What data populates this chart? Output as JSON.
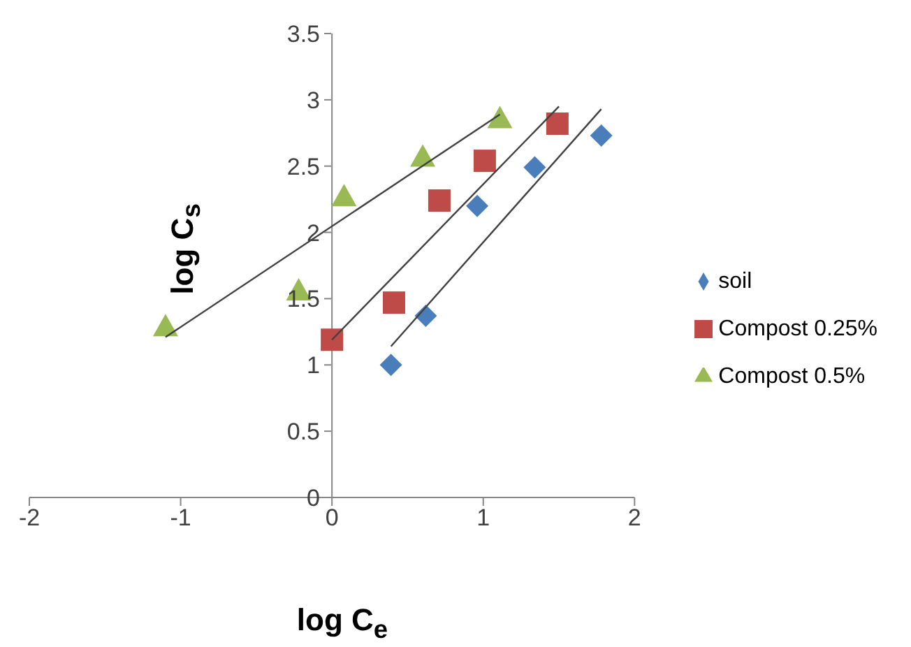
{
  "chart_data": {
    "type": "scatter",
    "xlabel": "log C$_{e}$",
    "ylabel": "log C$_{s}$",
    "xlim": [
      -2,
      2
    ],
    "xticks": [
      -2,
      -1,
      0,
      1,
      2
    ],
    "ylim": [
      0,
      3.5
    ],
    "yticks": [
      0,
      0.5,
      1,
      1.5,
      2,
      2.5,
      3,
      3.5
    ],
    "legend": "right",
    "series": [
      {
        "name": "soil",
        "color": "#4a7ebb",
        "marker": "diamond",
        "x": [
          0.39,
          0.62,
          0.96,
          1.34,
          1.78
        ],
        "values": [
          1.0,
          1.37,
          2.2,
          2.49,
          2.73
        ]
      },
      {
        "name": "Compost 0.25%",
        "color": "#be4b48",
        "marker": "square",
        "x": [
          0,
          0.41,
          0.71,
          1.01,
          1.49
        ],
        "values": [
          1.19,
          1.47,
          2.24,
          2.54,
          2.82
        ]
      },
      {
        "name": "Compost 0.5%",
        "color": "#98b954",
        "marker": "triangle",
        "x": [
          -1.1,
          -0.22,
          0.08,
          0.6,
          1.11
        ],
        "values": [
          1.29,
          1.56,
          2.27,
          2.57,
          2.86
        ]
      },
      {
        "type": "line",
        "color": "#404040",
        "marker": "none",
        "x": [
          0.39,
          1.78
        ],
        "values": [
          1.14,
          2.93
        ]
      },
      {
        "type": "line",
        "color": "#404040",
        "marker": "none",
        "x": [
          0,
          1.5
        ],
        "values": [
          1.19,
          2.95
        ]
      },
      {
        "type": "line",
        "color": "#404040",
        "marker": "none",
        "x": [
          -1.1,
          1.11
        ],
        "values": [
          1.21,
          2.89
        ]
      }
    ]
  }
}
